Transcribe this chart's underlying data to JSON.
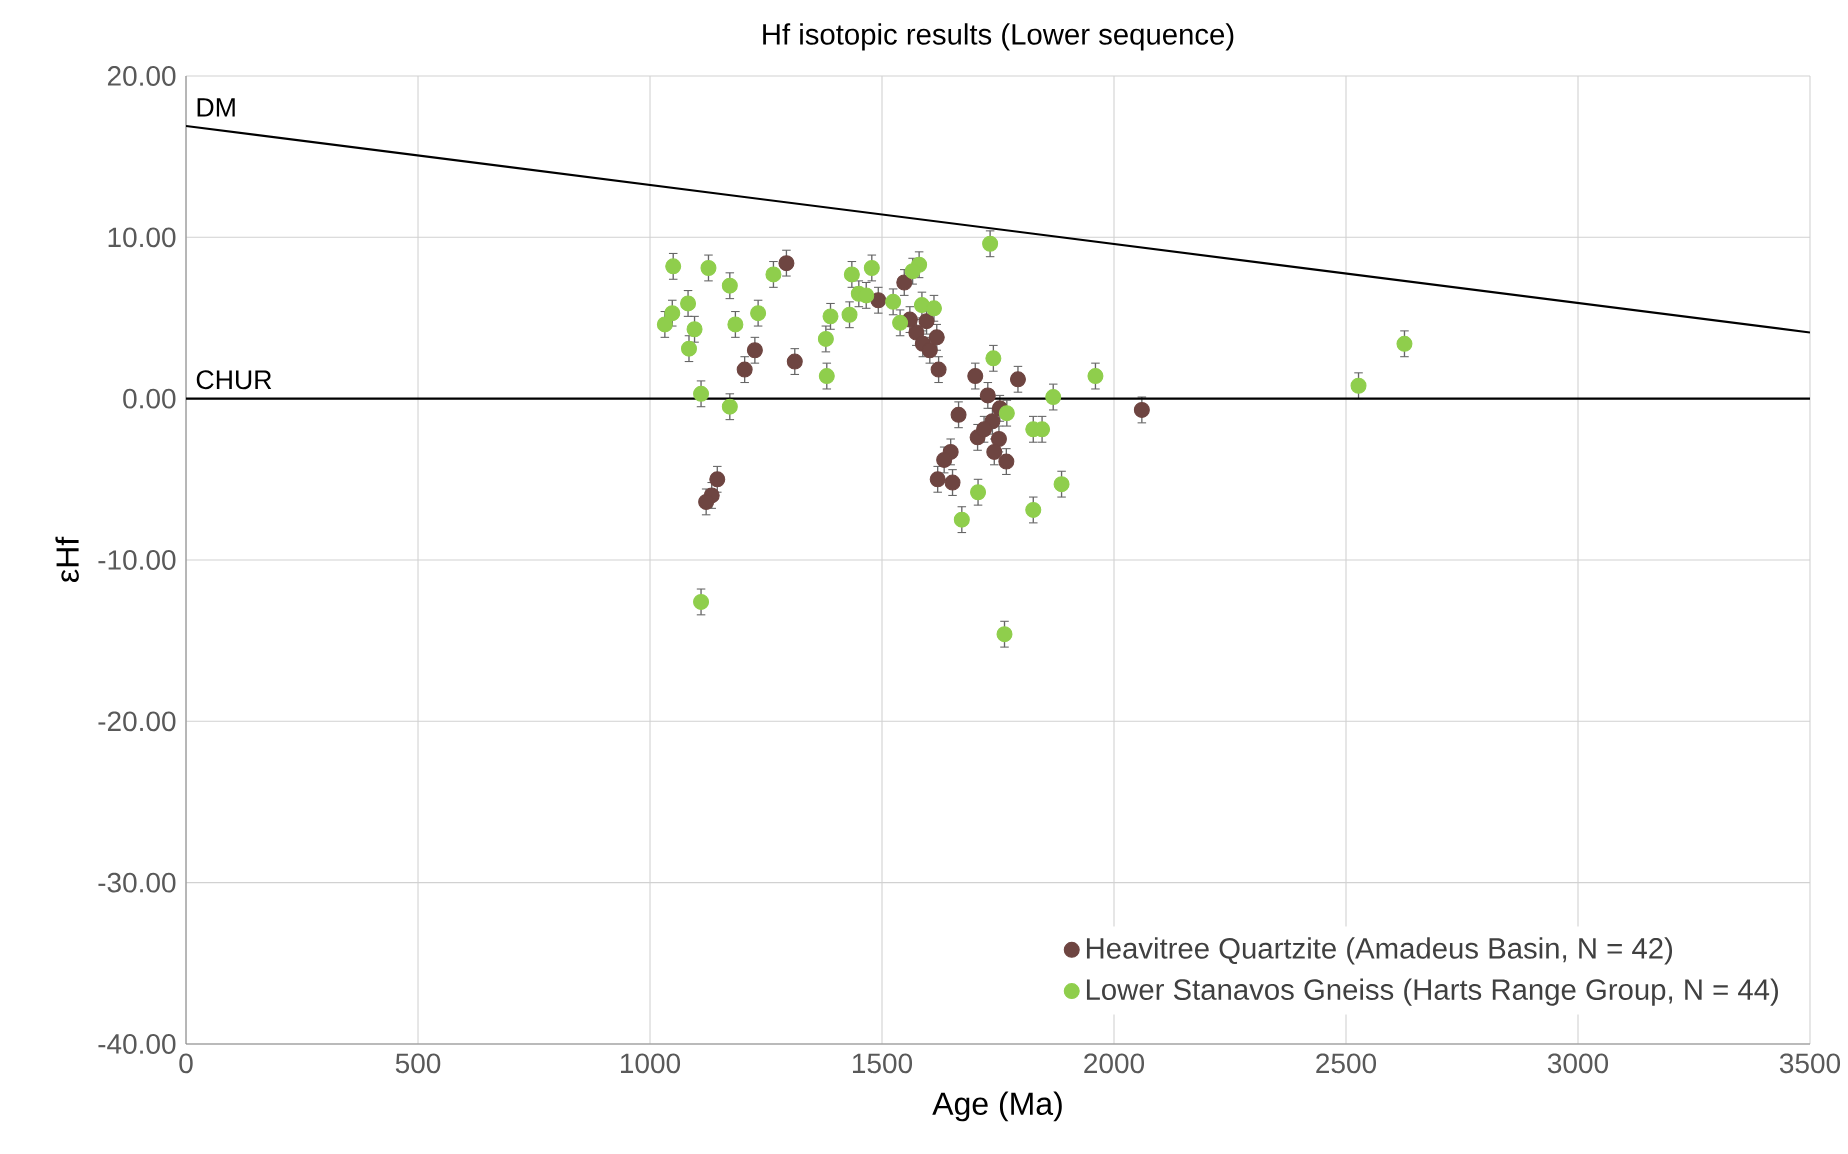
{
  "chart_data": {
    "type": "scatter",
    "title": "Hf isotopic results (Lower sequence)",
    "xlabel": "Age (Ma)",
    "ylabel": "εHf",
    "xlim": [
      0,
      3500
    ],
    "xticks": [
      0,
      500,
      1000,
      1500,
      2000,
      2500,
      3000,
      3500
    ],
    "ylim": [
      -40,
      20
    ],
    "yticks": [
      {
        "value": -40,
        "label": "-40.00"
      },
      {
        "value": -30,
        "label": "-30.00"
      },
      {
        "value": -20,
        "label": "-20.00"
      },
      {
        "value": -10,
        "label": "-10.00"
      },
      {
        "value": 0,
        "label": "0.00"
      },
      {
        "value": 10,
        "label": "10.00"
      },
      {
        "value": 20,
        "label": "20.00"
      }
    ],
    "grid": true,
    "legend": "bottom right",
    "ref_lines": [
      {
        "axis": "y",
        "value": 0,
        "label": "CHUR",
        "color": "#000000"
      }
    ],
    "series": [
      {
        "name": "Heavitree Quartzite (Amadeus Basin, N = 42)",
        "color": "#6e4541",
        "marker": "circle",
        "x": [
          1294,
          1226,
          1204,
          1312,
          1492,
          1548,
          1145,
          1133,
          1121,
          1574,
          1588,
          1603,
          1618,
          1622,
          1560,
          1596,
          1665,
          1648,
          1634,
          1620,
          1652,
          1701,
          1793,
          1728,
          2060,
          1754,
          1738,
          1706,
          1752,
          1742,
          1768,
          1720
        ],
        "values": [
          8.4,
          3.0,
          1.8,
          2.3,
          6.1,
          7.2,
          -5.0,
          -6.0,
          -6.4,
          4.1,
          3.4,
          3.0,
          3.8,
          1.8,
          4.9,
          4.8,
          -1.0,
          -3.3,
          -3.8,
          -5.0,
          -5.2,
          1.4,
          1.2,
          0.2,
          -0.7,
          -0.6,
          -1.4,
          -2.4,
          -2.5,
          -3.3,
          -3.9,
          -1.9
        ],
        "errors": [
          0.8,
          0.8,
          0.8,
          0.8,
          0.8,
          0.8,
          0.8,
          0.8,
          0.8,
          0.8,
          0.8,
          0.8,
          0.8,
          0.8,
          0.8,
          0.8,
          0.8,
          0.8,
          0.8,
          0.8,
          0.8,
          0.8,
          0.8,
          0.8,
          0.8,
          0.8,
          0.8,
          0.8,
          0.8,
          0.8,
          0.8,
          0.8
        ]
      },
      {
        "name": "Lower Stanavos Gneiss (Harts Range Group, N = 44)",
        "color": "#8fce4c",
        "marker": "circle",
        "x": [
          1050,
          1126,
          1172,
          1266,
          1435,
          1478,
          1580,
          1566,
          1450,
          1466,
          1524,
          1048,
          1032,
          1082,
          1096,
          1084,
          1184,
          1233,
          1389,
          1379,
          1430,
          1381,
          1539,
          1586,
          1612,
          1110,
          1172,
          1110,
          1733,
          1740,
          1869,
          1960,
          1769,
          1826,
          1845,
          1707,
          1672,
          1826,
          1887,
          1764,
          2527,
          2626
        ],
        "values": [
          8.2,
          8.1,
          7.0,
          7.7,
          7.7,
          8.1,
          8.3,
          7.9,
          6.5,
          6.4,
          6.0,
          5.3,
          4.6,
          5.9,
          4.3,
          3.1,
          4.6,
          5.3,
          5.1,
          3.7,
          5.2,
          1.4,
          4.7,
          5.8,
          5.6,
          0.3,
          -0.5,
          -12.6,
          9.6,
          2.5,
          0.1,
          1.4,
          -0.9,
          -1.9,
          -1.9,
          -5.8,
          -7.5,
          -6.9,
          -5.3,
          -14.6,
          0.8,
          3.4
        ],
        "errors": [
          0.8,
          0.8,
          0.8,
          0.8,
          0.8,
          0.8,
          0.8,
          0.8,
          0.8,
          0.8,
          0.8,
          0.8,
          0.8,
          0.8,
          0.8,
          0.8,
          0.8,
          0.8,
          0.8,
          0.8,
          0.8,
          0.8,
          0.8,
          0.8,
          0.8,
          0.8,
          0.8,
          0.8,
          0.8,
          0.8,
          0.8,
          0.8,
          0.8,
          0.8,
          0.8,
          0.8,
          0.8,
          0.8,
          0.8,
          0.8,
          0.8,
          0.8
        ]
      },
      {
        "name": "DM",
        "type": "line",
        "color": "#000000",
        "marker": "none",
        "x": [
          0,
          3500
        ],
        "values": [
          16.9,
          4.1
        ]
      }
    ]
  }
}
